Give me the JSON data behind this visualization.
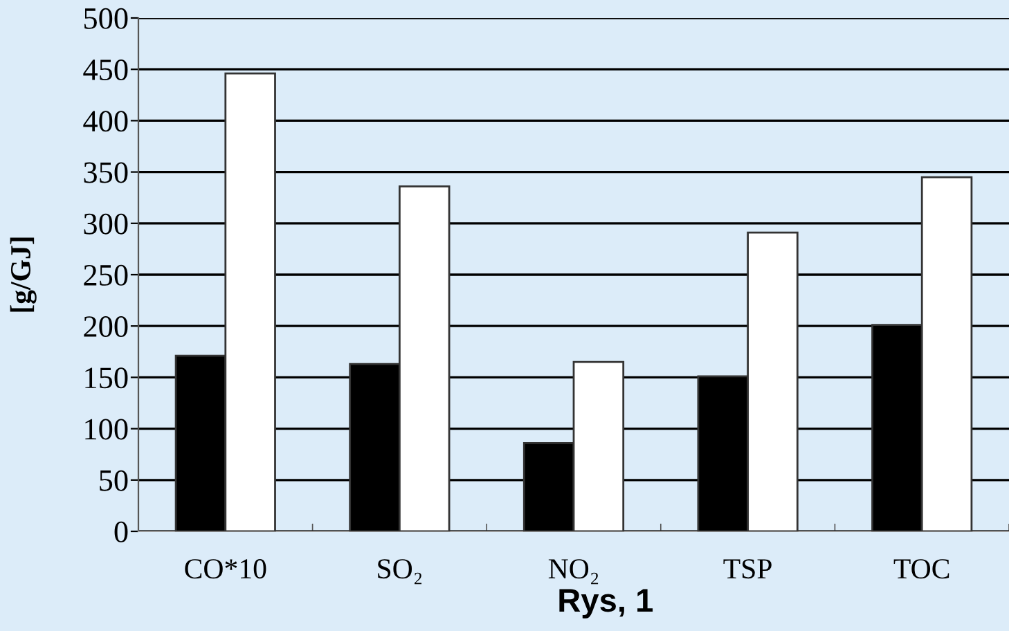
{
  "chart_data": {
    "type": "bar",
    "ylabel": "[g/GJ]",
    "categories": [
      "CO*10",
      "SO₂",
      "NO₂",
      "TSP",
      "TOC"
    ],
    "series": [
      {
        "color": "#000000",
        "values": [
          171,
          163,
          86,
          151,
          201
        ]
      },
      {
        "color": "#ffffff",
        "values": [
          446,
          336,
          165,
          291,
          345
        ]
      }
    ],
    "ylim": [
      0,
      500
    ],
    "yticks": [
      0,
      50,
      100,
      150,
      200,
      250,
      300,
      350,
      400,
      450,
      500
    ],
    "grid": "y",
    "annotations": [
      "Rys, 1"
    ]
  }
}
